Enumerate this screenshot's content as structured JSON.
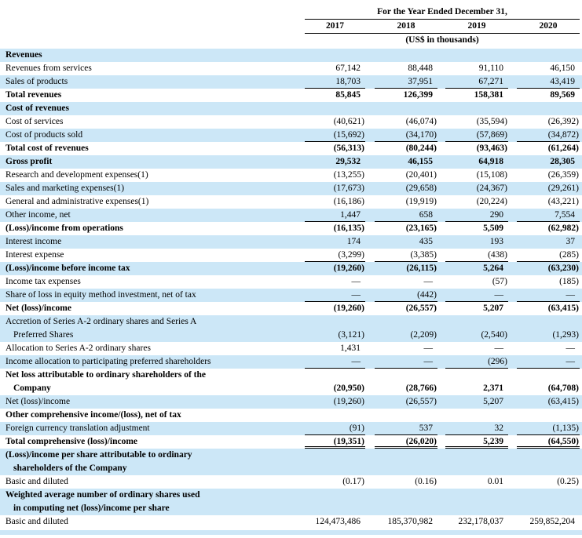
{
  "header": {
    "title": "For the Year Ended December 31,",
    "years": [
      "2017",
      "2018",
      "2019",
      "2020"
    ],
    "units": "(US$ in thousands)"
  },
  "colors": {
    "row_highlight": "#cce7f7",
    "rule": "#000000"
  },
  "rows": [
    {
      "label": "Revenues",
      "bold": true,
      "bg": "blue"
    },
    {
      "label": "Revenues from services",
      "bg": "white",
      "values": [
        "67,142",
        "88,448",
        "91,110",
        "46,150"
      ]
    },
    {
      "label": "Sales of products",
      "bg": "blue",
      "values": [
        "18,703",
        "37,951",
        "67,271",
        "43,419"
      ],
      "underline": "single"
    },
    {
      "label": "Total revenues",
      "bold": true,
      "bg": "white",
      "values": [
        "85,845",
        "126,399",
        "158,381",
        "89,569"
      ]
    },
    {
      "label": "Cost of revenues",
      "bold": true,
      "bg": "blue"
    },
    {
      "label": "Cost of services",
      "bg": "white",
      "values": [
        "(40,621)",
        "(46,074)",
        "(35,594)",
        "(26,392)"
      ]
    },
    {
      "label": "Cost of products sold",
      "bg": "blue",
      "values": [
        "(15,692)",
        "(34,170)",
        "(57,869)",
        "(34,872)"
      ],
      "underline": "single"
    },
    {
      "label": "Total cost of revenues",
      "bold": true,
      "bg": "white",
      "values": [
        "(56,313)",
        "(80,244)",
        "(93,463)",
        "(61,264)"
      ]
    },
    {
      "label": "Gross profit",
      "bold": true,
      "bg": "blue",
      "values": [
        "29,532",
        "46,155",
        "64,918",
        "28,305"
      ]
    },
    {
      "label": "Research and development expenses(1)",
      "bg": "white",
      "values": [
        "(13,255)",
        "(20,401)",
        "(15,108)",
        "(26,359)"
      ]
    },
    {
      "label": "Sales and marketing expenses(1)",
      "bg": "blue",
      "values": [
        "(17,673)",
        "(29,658)",
        "(24,367)",
        "(29,261)"
      ]
    },
    {
      "label": "General and administrative expenses(1)",
      "bg": "white",
      "values": [
        "(16,186)",
        "(19,919)",
        "(20,224)",
        "(43,221)"
      ]
    },
    {
      "label": "Other income, net",
      "bg": "blue",
      "values": [
        "1,447",
        "658",
        "290",
        "7,554"
      ],
      "underline": "single"
    },
    {
      "label": "(Loss)/income from operations",
      "bold": true,
      "bg": "white",
      "values": [
        "(16,135)",
        "(23,165)",
        "5,509",
        "(62,982)"
      ]
    },
    {
      "label": "Interest income",
      "bg": "blue",
      "values": [
        "174",
        "435",
        "193",
        "37"
      ]
    },
    {
      "label": "Interest expense",
      "bg": "white",
      "values": [
        "(3,299)",
        "(3,385)",
        "(438)",
        "(285)"
      ],
      "underline": "single"
    },
    {
      "label": "(Loss)/income before income tax",
      "bold": true,
      "bg": "blue",
      "values": [
        "(19,260)",
        "(26,115)",
        "5,264",
        "(63,230)"
      ]
    },
    {
      "label": "Income tax expenses",
      "bg": "white",
      "values": [
        "—",
        "—",
        "(57)",
        "(185)"
      ]
    },
    {
      "label": "Share of loss in equity method investment, net of tax",
      "bg": "blue",
      "values": [
        "—",
        "(442)",
        "—",
        "—"
      ],
      "underline": "single"
    },
    {
      "label": "Net (loss)/income",
      "bold": true,
      "bg": "white",
      "values": [
        "(19,260)",
        "(26,557)",
        "5,207",
        "(63,415)"
      ]
    },
    {
      "label": "Accretion of Series A-2 ordinary shares and Series A",
      "label2": "Preferred Shares",
      "bg": "blue",
      "values": [
        "(3,121)",
        "(2,209)",
        "(2,540)",
        "(1,293)"
      ]
    },
    {
      "label": "Allocation to Series A-2 ordinary shares",
      "bg": "white",
      "values": [
        "1,431",
        "—",
        "—",
        "—"
      ]
    },
    {
      "label": "Income allocation to participating preferred shareholders",
      "bg": "blue",
      "values": [
        "—",
        "—",
        "(296)",
        "—"
      ],
      "underline": "single"
    },
    {
      "label": "Net loss attributable to ordinary shareholders of the",
      "label2": "Company",
      "bold": true,
      "bg": "white",
      "values": [
        "(20,950)",
        "(28,766)",
        "2,371",
        "(64,708)"
      ]
    },
    {
      "label": "Net (loss)/income",
      "bg": "blue",
      "values": [
        "(19,260)",
        "(26,557)",
        "5,207",
        "(63,415)"
      ]
    },
    {
      "label": "Other comprehensive income/(loss), net of tax",
      "bold": true,
      "bg": "white"
    },
    {
      "label": "Foreign currency translation adjustment",
      "bg": "blue",
      "values": [
        "(91)",
        "537",
        "32",
        "(1,135)"
      ],
      "underline": "single"
    },
    {
      "label": "Total comprehensive (loss)/income",
      "bold": true,
      "bg": "white",
      "values": [
        "(19,351)",
        "(26,020)",
        "5,239",
        "(64,550)"
      ],
      "underline": "double"
    },
    {
      "label": "(Loss)/income per share attributable to ordinary",
      "label2": "shareholders of the Company",
      "bold": true,
      "bg": "blue"
    },
    {
      "label": "Basic and diluted",
      "bg": "white",
      "values": [
        "(0.17)",
        "(0.16)",
        "0.01",
        "(0.25)"
      ]
    },
    {
      "label": "Weighted average number of ordinary shares used",
      "label2": "in computing net (loss)/income per share",
      "bold": true,
      "bg": "blue"
    },
    {
      "label": "Basic and diluted",
      "bg": "white",
      "values": [
        "124,473,486",
        "185,370,982",
        "232,178,037",
        "259,852,204"
      ]
    }
  ]
}
